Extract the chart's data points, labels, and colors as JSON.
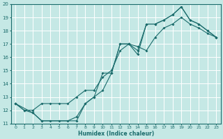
{
  "xlabel": "Humidex (Indice chaleur)",
  "xlim": [
    -0.5,
    23.5
  ],
  "ylim": [
    11,
    20
  ],
  "yticks": [
    11,
    12,
    13,
    14,
    15,
    16,
    17,
    18,
    19,
    20
  ],
  "xticks": [
    0,
    1,
    2,
    3,
    4,
    5,
    6,
    7,
    8,
    9,
    10,
    11,
    12,
    13,
    14,
    15,
    16,
    17,
    18,
    19,
    20,
    21,
    22,
    23
  ],
  "bg_color": "#c5e8e5",
  "grid_color": "#ffffff",
  "line_color": "#1a6b6b",
  "line1_x": [
    0,
    1,
    2,
    3,
    4,
    5,
    6,
    7,
    8,
    9,
    10,
    11,
    12,
    13,
    14,
    15,
    16,
    17,
    18,
    19,
    20,
    21,
    22,
    23
  ],
  "line1_y": [
    12.5,
    12.0,
    12.0,
    12.5,
    12.5,
    12.5,
    12.5,
    13.0,
    13.5,
    13.5,
    14.5,
    15.0,
    16.5,
    17.0,
    16.8,
    16.5,
    17.5,
    18.2,
    18.5,
    19.0,
    18.5,
    18.2,
    17.8,
    17.5
  ],
  "line2_x": [
    0,
    1,
    2,
    3,
    4,
    5,
    6,
    7,
    8,
    9,
    10,
    11,
    12,
    13,
    14,
    15,
    16,
    17,
    18,
    19,
    20,
    21,
    22,
    23
  ],
  "line2_y": [
    12.5,
    12.0,
    11.8,
    11.2,
    11.2,
    11.2,
    11.2,
    11.5,
    12.5,
    13.0,
    13.5,
    14.8,
    17.0,
    17.0,
    16.2,
    18.5,
    18.5,
    18.8,
    19.2,
    19.8,
    18.8,
    18.5,
    18.0,
    17.5
  ],
  "line3_x": [
    0,
    2,
    3,
    7,
    8,
    9,
    10,
    11,
    12,
    13,
    14,
    15,
    16,
    17,
    18,
    19,
    20,
    21,
    22,
    23
  ],
  "line3_y": [
    12.5,
    11.8,
    11.2,
    11.2,
    12.5,
    13.0,
    14.8,
    14.8,
    17.0,
    17.0,
    16.5,
    18.5,
    18.5,
    18.8,
    19.2,
    19.8,
    18.8,
    18.5,
    18.0,
    17.5
  ]
}
